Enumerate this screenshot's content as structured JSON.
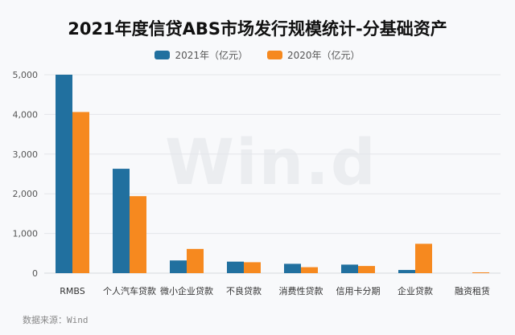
{
  "chart_data": {
    "type": "bar",
    "title": "2021年度信贷ABS市场发行规模统计-分基础资产",
    "xlabel": "",
    "ylabel": "",
    "ylim": [
      0,
      5000
    ],
    "yticks": [
      0,
      1000,
      2000,
      3000,
      4000,
      5000
    ],
    "ytick_labels": [
      "0",
      "1,000",
      "2,000",
      "3,000",
      "4,000",
      "5,000"
    ],
    "grid": true,
    "legend_position": "top",
    "categories": [
      "RMBS",
      "个人汽车贷款",
      "微小企业贷款",
      "不良贷款",
      "消费性贷款",
      "信用卡分期",
      "企业贷款",
      "融资租赁"
    ],
    "series": [
      {
        "name": "2021年（亿元）",
        "color": "#21709f",
        "values": [
          5000,
          2630,
          320,
          290,
          235,
          215,
          80,
          0
        ]
      },
      {
        "name": "2020年（亿元）",
        "color": "#f6891f",
        "values": [
          4060,
          1940,
          610,
          275,
          150,
          180,
          740,
          20
        ]
      }
    ]
  },
  "legend": {
    "items": [
      {
        "label": "2021年（亿元）",
        "color": "#21709f"
      },
      {
        "label": "2020年（亿元）",
        "color": "#f6891f"
      }
    ]
  },
  "watermark": "Win.d",
  "source": "数据来源：Wind"
}
